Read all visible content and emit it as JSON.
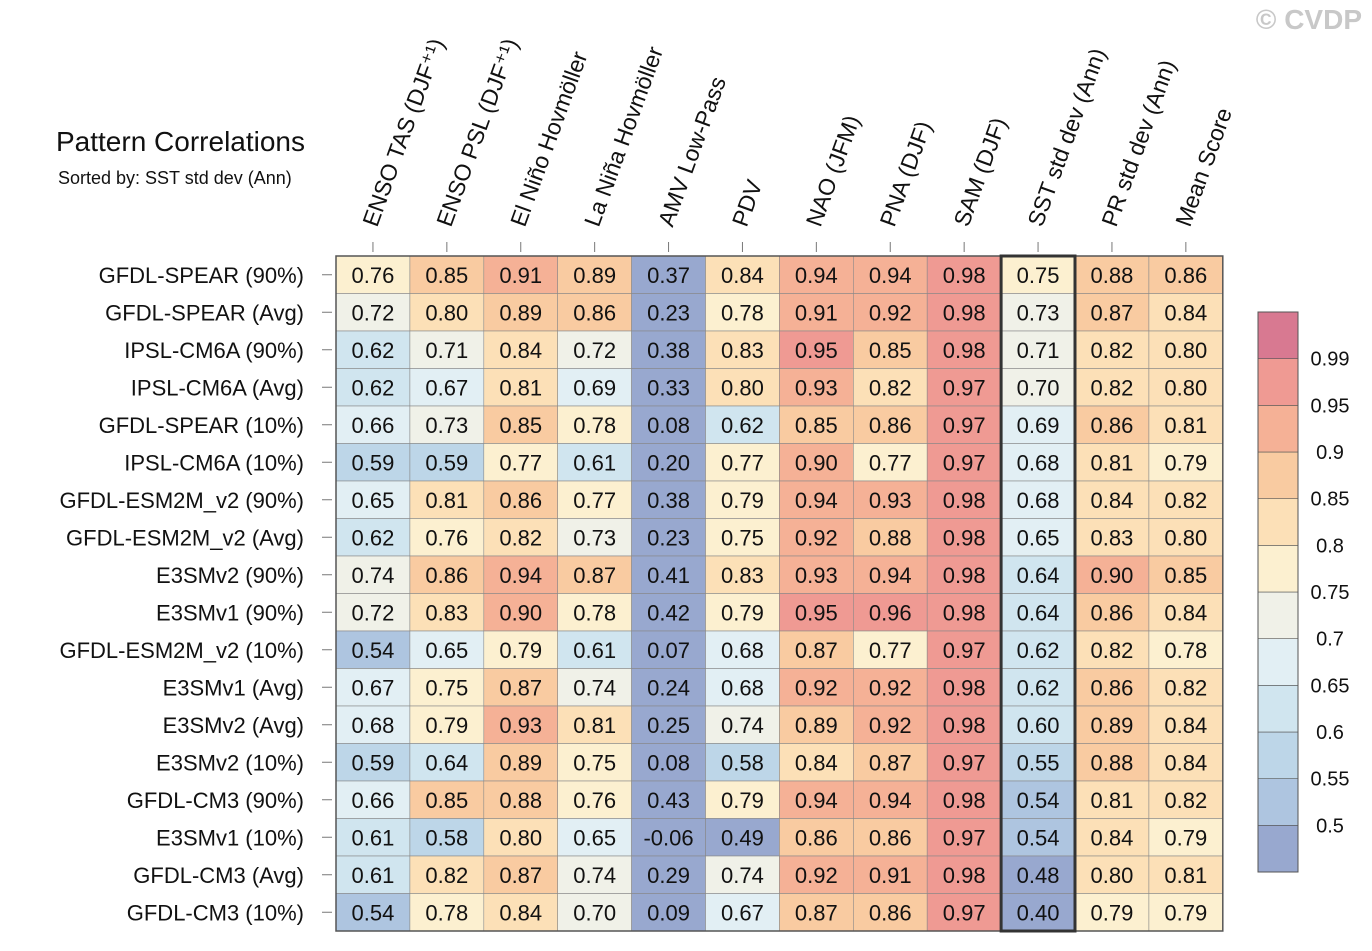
{
  "watermark": "© CVDP",
  "chart_data": {
    "type": "heatmap",
    "title": "Pattern Correlations",
    "subtitle": "Sorted by: SST std dev (Ann)",
    "columns": [
      "ENSO TAS (DJF⁺¹)",
      "ENSO PSL (DJF⁺¹)",
      "El Niño Hovmöller",
      "La Niña Hovmöller",
      "AMV Low-Pass",
      "PDV",
      "NAO (JFM)",
      "PNA (DJF)",
      "SAM (DJF)",
      "SST std dev (Ann)",
      "PR std dev (Ann)",
      "Mean Score"
    ],
    "highlighted_column": "SST std dev (Ann)",
    "rows": [
      "GFDL-SPEAR (90%)",
      "GFDL-SPEAR (Avg)",
      "IPSL-CM6A (90%)",
      "IPSL-CM6A (Avg)",
      "GFDL-SPEAR (10%)",
      "IPSL-CM6A (10%)",
      "GFDL-ESM2M_v2 (90%)",
      "GFDL-ESM2M_v2 (Avg)",
      "E3SMv2 (90%)",
      "E3SMv1 (90%)",
      "GFDL-ESM2M_v2 (10%)",
      "E3SMv1 (Avg)",
      "E3SMv2 (Avg)",
      "E3SMv2 (10%)",
      "GFDL-CM3 (90%)",
      "E3SMv1 (10%)",
      "GFDL-CM3 (Avg)",
      "GFDL-CM3 (10%)"
    ],
    "values": [
      [
        "0.76",
        "0.85",
        "0.91",
        "0.89",
        "0.37",
        "0.84",
        "0.94",
        "0.94",
        "0.98",
        "0.75",
        "0.88",
        "0.86"
      ],
      [
        "0.72",
        "0.80",
        "0.89",
        "0.86",
        "0.23",
        "0.78",
        "0.91",
        "0.92",
        "0.98",
        "0.73",
        "0.87",
        "0.84"
      ],
      [
        "0.62",
        "0.71",
        "0.84",
        "0.72",
        "0.38",
        "0.83",
        "0.95",
        "0.85",
        "0.98",
        "0.71",
        "0.82",
        "0.80"
      ],
      [
        "0.62",
        "0.67",
        "0.81",
        "0.69",
        "0.33",
        "0.80",
        "0.93",
        "0.82",
        "0.97",
        "0.70",
        "0.82",
        "0.80"
      ],
      [
        "0.66",
        "0.73",
        "0.85",
        "0.78",
        "0.08",
        "0.62",
        "0.85",
        "0.86",
        "0.97",
        "0.69",
        "0.86",
        "0.81"
      ],
      [
        "0.59",
        "0.59",
        "0.77",
        "0.61",
        "0.20",
        "0.77",
        "0.90",
        "0.77",
        "0.97",
        "0.68",
        "0.81",
        "0.79"
      ],
      [
        "0.65",
        "0.81",
        "0.86",
        "0.77",
        "0.38",
        "0.79",
        "0.94",
        "0.93",
        "0.98",
        "0.68",
        "0.84",
        "0.82"
      ],
      [
        "0.62",
        "0.76",
        "0.82",
        "0.73",
        "0.23",
        "0.75",
        "0.92",
        "0.88",
        "0.98",
        "0.65",
        "0.83",
        "0.80"
      ],
      [
        "0.74",
        "0.86",
        "0.94",
        "0.87",
        "0.41",
        "0.83",
        "0.93",
        "0.94",
        "0.98",
        "0.64",
        "0.90",
        "0.85"
      ],
      [
        "0.72",
        "0.83",
        "0.90",
        "0.78",
        "0.42",
        "0.79",
        "0.95",
        "0.96",
        "0.98",
        "0.64",
        "0.86",
        "0.84"
      ],
      [
        "0.54",
        "0.65",
        "0.79",
        "0.61",
        "0.07",
        "0.68",
        "0.87",
        "0.77",
        "0.97",
        "0.62",
        "0.82",
        "0.78"
      ],
      [
        "0.67",
        "0.75",
        "0.87",
        "0.74",
        "0.24",
        "0.68",
        "0.92",
        "0.92",
        "0.98",
        "0.62",
        "0.86",
        "0.82"
      ],
      [
        "0.68",
        "0.79",
        "0.93",
        "0.81",
        "0.25",
        "0.74",
        "0.89",
        "0.92",
        "0.98",
        "0.60",
        "0.89",
        "0.84"
      ],
      [
        "0.59",
        "0.64",
        "0.89",
        "0.75",
        "0.08",
        "0.58",
        "0.84",
        "0.87",
        "0.97",
        "0.55",
        "0.88",
        "0.84"
      ],
      [
        "0.66",
        "0.85",
        "0.88",
        "0.76",
        "0.43",
        "0.79",
        "0.94",
        "0.94",
        "0.98",
        "0.54",
        "0.81",
        "0.82"
      ],
      [
        "0.61",
        "0.58",
        "0.80",
        "0.65",
        "-0.06",
        "0.49",
        "0.86",
        "0.86",
        "0.97",
        "0.54",
        "0.84",
        "0.79"
      ],
      [
        "0.61",
        "0.82",
        "0.87",
        "0.74",
        "0.29",
        "0.74",
        "0.92",
        "0.91",
        "0.98",
        "0.48",
        "0.80",
        "0.81"
      ],
      [
        "0.54",
        "0.78",
        "0.84",
        "0.70",
        "0.09",
        "0.67",
        "0.87",
        "0.86",
        "0.97",
        "0.40",
        "0.79",
        "0.79"
      ]
    ],
    "colorbar": {
      "levels": [
        "0.5",
        "0.55",
        "0.6",
        "0.65",
        "0.7",
        "0.75",
        "0.8",
        "0.85",
        "0.9",
        "0.95",
        "0.99"
      ],
      "colors": [
        "#98a8cf",
        "#aec5e0",
        "#bdd6e8",
        "#d0e5ef",
        "#e2eff4",
        "#f0f1e8",
        "#fcf0d0",
        "#fce0b7",
        "#f9cba1",
        "#f5b196",
        "#ef9a93",
        "#d87991"
      ]
    }
  }
}
